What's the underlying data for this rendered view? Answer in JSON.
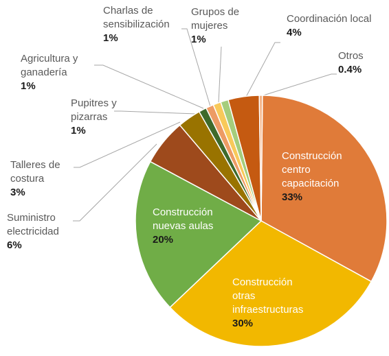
{
  "chart_data": {
    "type": "pie",
    "categories": [
      "Construcción centro capacitación",
      "Construcción otras infraestructuras",
      "Construcción nuevas aulas",
      "Suministro electricidad",
      "Talleres de costura",
      "Pupitres y pizarras",
      "Agricultura y ganadería",
      "Charlas de sensibilización",
      "Grupos de mujeres",
      "Coordinación local",
      "Otros"
    ],
    "values": [
      33,
      30,
      20,
      6,
      3,
      1,
      1,
      1,
      1,
      4,
      0.4
    ],
    "value_labels": [
      "33%",
      "30%",
      "20%",
      "6%",
      "3%",
      "1%",
      "1%",
      "1%",
      "1%",
      "4%",
      "0.4%"
    ],
    "colors": [
      "#e07b39",
      "#f2b800",
      "#70ad47",
      "#9e4a1c",
      "#997300",
      "#3e6a2b",
      "#ed9b64",
      "#f8c95a",
      "#a5cd7c",
      "#c55a11",
      "#f4b183"
    ]
  }
}
